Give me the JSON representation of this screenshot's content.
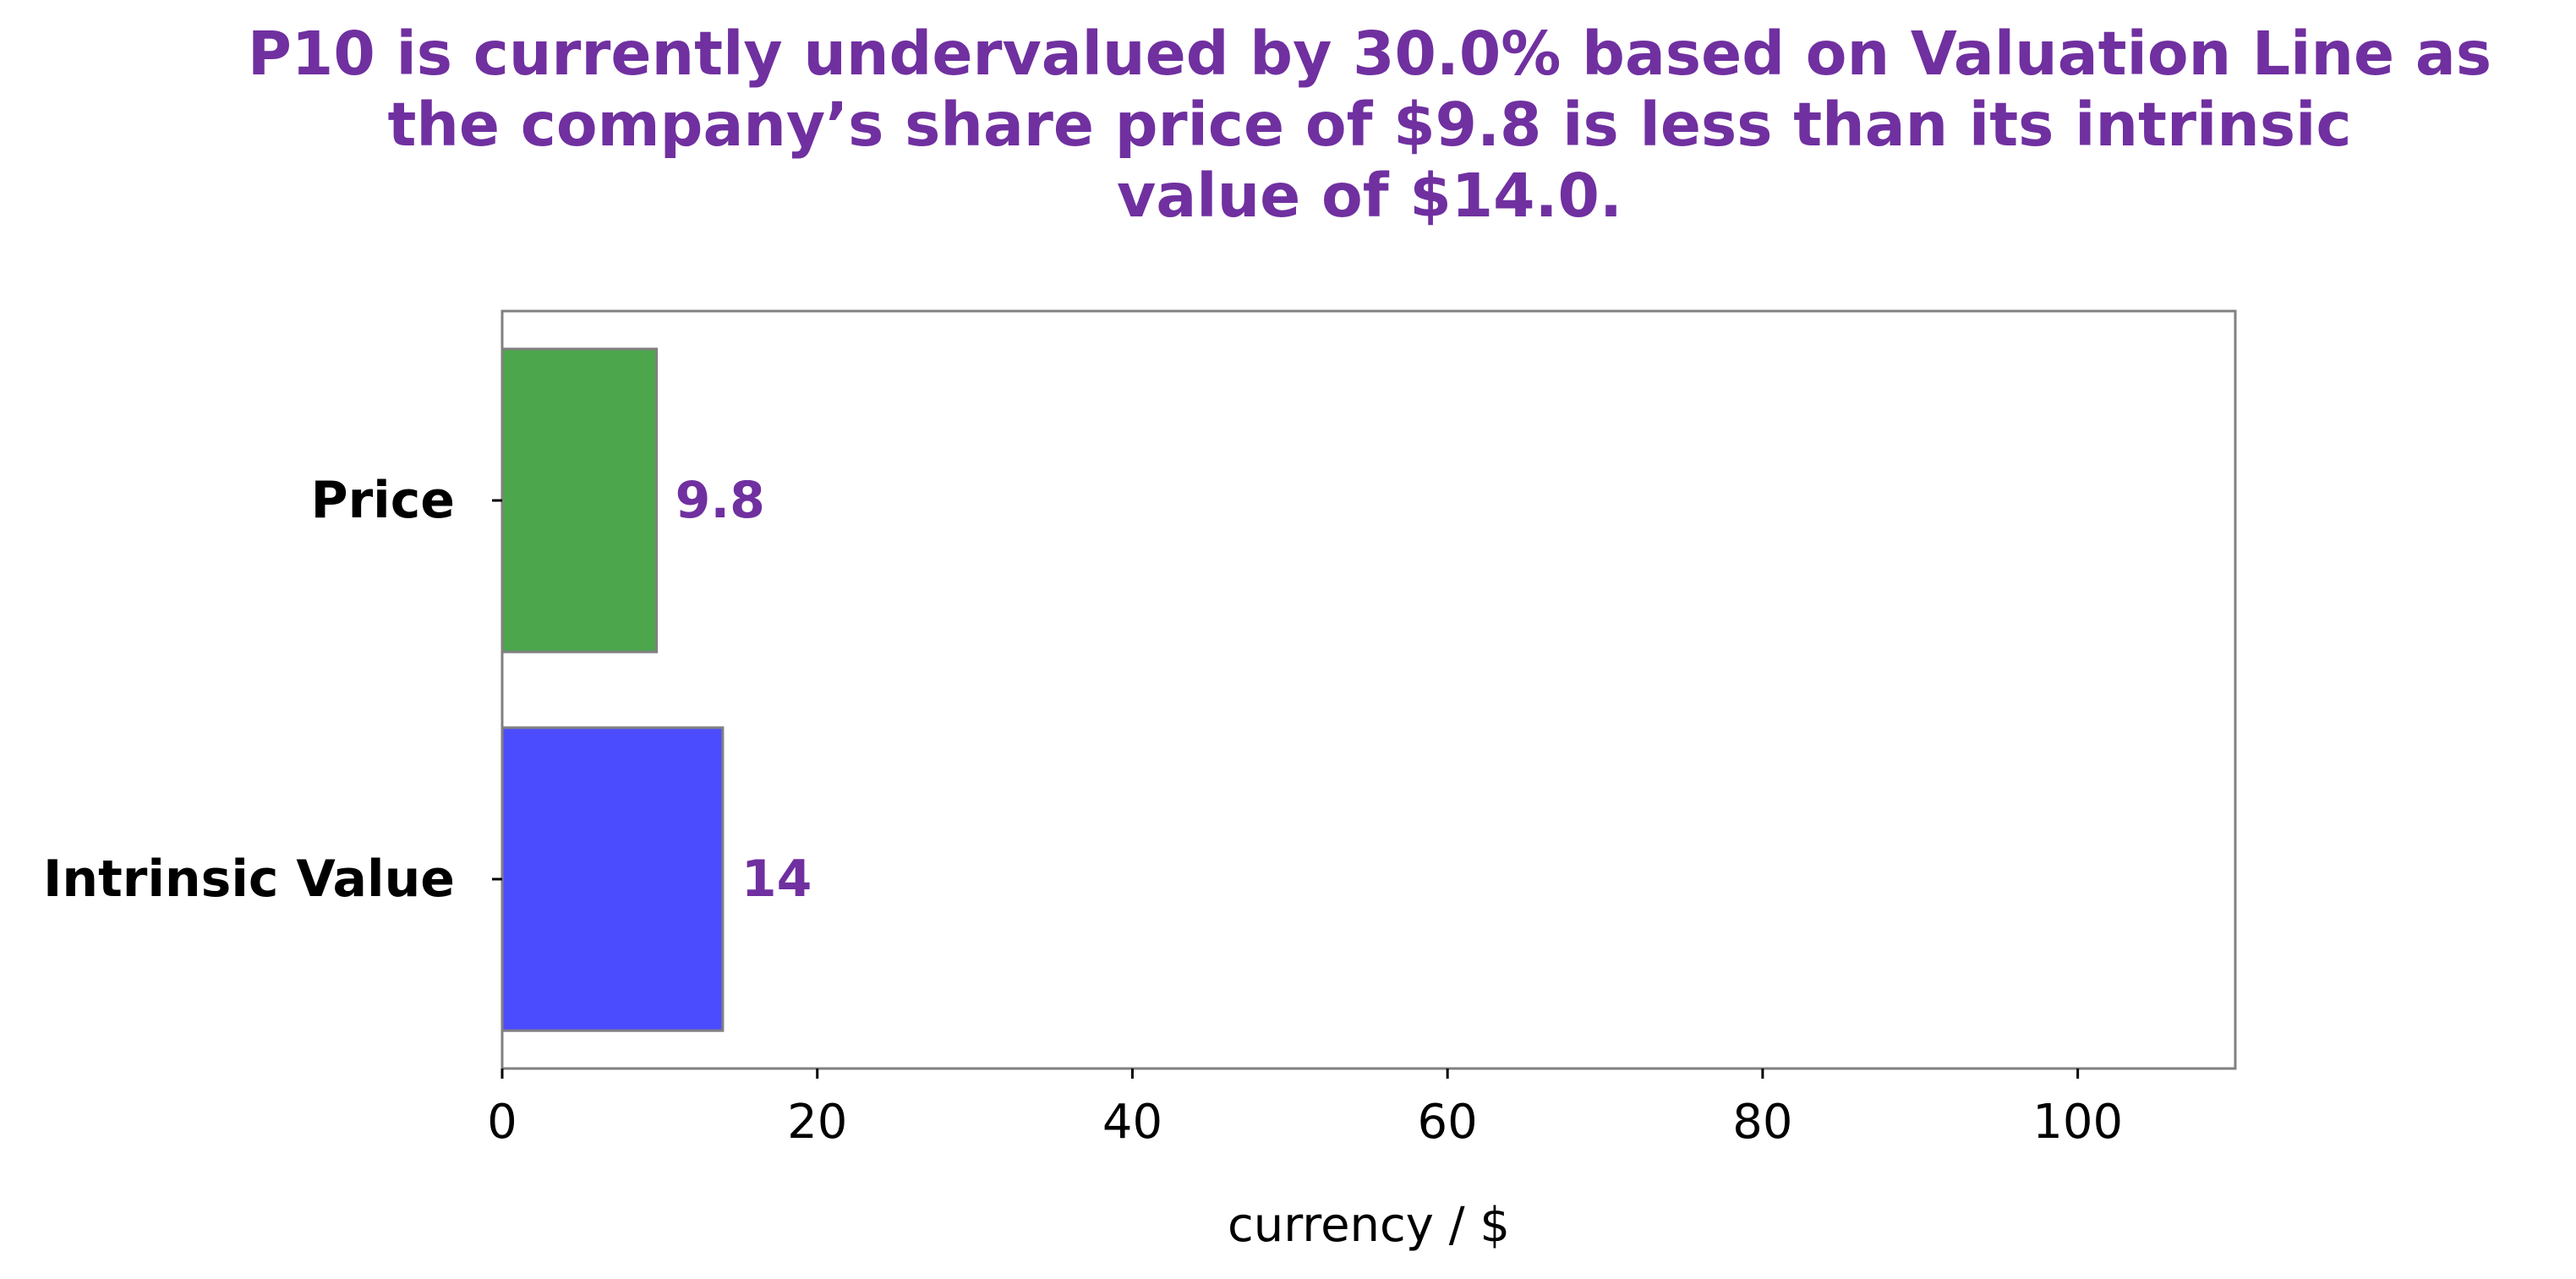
{
  "chart_data": {
    "type": "bar",
    "orientation": "horizontal",
    "title_lines": [
      "P10 is currently undervalued by 30.0% based on Valuation Line as",
      "the company’s share price of $9.8 is less than its intrinsic",
      "value of $14.0."
    ],
    "categories": [
      "Price",
      "Intrinsic Value"
    ],
    "values": [
      9.8,
      14
    ],
    "value_labels": [
      "9.8",
      "14"
    ],
    "bar_colors": [
      "#4ca64c",
      "#4c4cff"
    ],
    "xlabel": "currency / $",
    "ylabel": "",
    "xlim": [
      0,
      110
    ],
    "xticks": [
      0,
      20,
      40,
      60,
      80,
      100
    ],
    "xtick_labels": [
      "0",
      "20",
      "40",
      "60",
      "80",
      "100"
    ],
    "grid": false,
    "legend": false
  },
  "colors": {
    "title": "#7030a0",
    "data_label": "#7030a0",
    "axis": "#808080",
    "bar_edge": "#808080"
  }
}
